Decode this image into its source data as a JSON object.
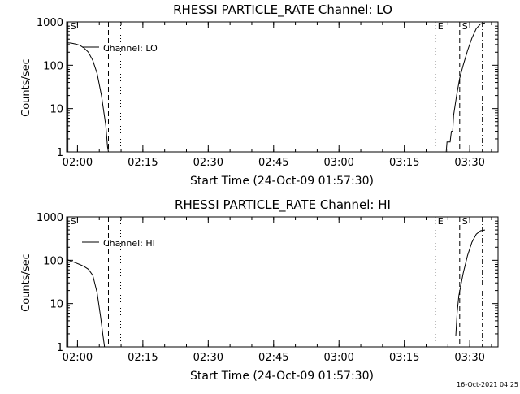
{
  "footer": {
    "timestamp": "16-Oct-2021 04:25"
  },
  "chart_data": [
    {
      "type": "line",
      "title": "RHESSI PARTICLE_RATE Channel: LO",
      "xlabel": "Start Time (24-Oct-09 01:57:30)",
      "ylabel": "Counts/sec",
      "x_unit": "minutes after 24-Oct-09 01:57:30",
      "xlim": [
        0,
        99
      ],
      "ylim": [
        1,
        1000
      ],
      "yscale": "log",
      "x_ticks": [
        {
          "value": 2.5,
          "label": "02:00"
        },
        {
          "value": 17.5,
          "label": "02:15"
        },
        {
          "value": 32.5,
          "label": "02:30"
        },
        {
          "value": 47.5,
          "label": "02:45"
        },
        {
          "value": 62.5,
          "label": "03:00"
        },
        {
          "value": 77.5,
          "label": "03:15"
        },
        {
          "value": 92.5,
          "label": "03:30"
        }
      ],
      "y_ticks": [
        {
          "value": 1,
          "label": "1"
        },
        {
          "value": 10,
          "label": "10"
        },
        {
          "value": 100,
          "label": "100"
        },
        {
          "value": 1000,
          "label": "1000"
        }
      ],
      "legend": {
        "position": "top-left",
        "label": "Channel: LO"
      },
      "markers": [
        {
          "x": 0.3,
          "style": "solid",
          "label": "S"
        },
        {
          "x": 9.6,
          "style": "dashed",
          "label": ""
        },
        {
          "x": 12.4,
          "style": "dotted",
          "label": ""
        },
        {
          "x": 84.6,
          "style": "dotted",
          "label": "E"
        },
        {
          "x": 90.2,
          "style": "dashed",
          "label": "S"
        },
        {
          "x": 95.4,
          "style": "dashdot",
          "label": ""
        }
      ],
      "series": [
        {
          "name": "Channel: LO",
          "segments": [
            [
              [
                0,
                330
              ],
              [
                1,
                325
              ],
              [
                2,
                310
              ],
              [
                3,
                290
              ],
              [
                4,
                250
              ],
              [
                5,
                200
              ],
              [
                6,
                130
              ],
              [
                7,
                65
              ],
              [
                8,
                20
              ],
              [
                9,
                4
              ],
              [
                9.4,
                1.3
              ],
              [
                9.6,
                1
              ]
            ],
            [
              [
                86.2,
                1
              ],
              [
                87.1,
                1
              ],
              [
                87.3,
                1.7
              ],
              [
                88,
                1.7
              ],
              [
                88.3,
                3
              ],
              [
                88.6,
                3
              ],
              [
                88.8,
                7
              ],
              [
                89.5,
                20
              ],
              [
                90.2,
                50
              ],
              [
                91,
                100
              ],
              [
                92,
                220
              ],
              [
                93,
                420
              ],
              [
                94,
                700
              ],
              [
                95,
                900
              ],
              [
                96,
                950
              ]
            ]
          ]
        }
      ]
    },
    {
      "type": "line",
      "title": "RHESSI PARTICLE_RATE Channel: HI",
      "xlabel": "Start Time (24-Oct-09 01:57:30)",
      "ylabel": "Counts/sec",
      "x_unit": "minutes after 24-Oct-09 01:57:30",
      "xlim": [
        0,
        99
      ],
      "ylim": [
        1,
        1000
      ],
      "yscale": "log",
      "x_ticks": [
        {
          "value": 2.5,
          "label": "02:00"
        },
        {
          "value": 17.5,
          "label": "02:15"
        },
        {
          "value": 32.5,
          "label": "02:30"
        },
        {
          "value": 47.5,
          "label": "02:45"
        },
        {
          "value": 62.5,
          "label": "03:00"
        },
        {
          "value": 77.5,
          "label": "03:15"
        },
        {
          "value": 92.5,
          "label": "03:30"
        }
      ],
      "y_ticks": [
        {
          "value": 1,
          "label": "1"
        },
        {
          "value": 10,
          "label": "10"
        },
        {
          "value": 100,
          "label": "100"
        },
        {
          "value": 1000,
          "label": "1000"
        }
      ],
      "legend": {
        "position": "top-left",
        "label": "Channel: HI"
      },
      "markers": [
        {
          "x": 0.3,
          "style": "solid",
          "label": "S"
        },
        {
          "x": 9.6,
          "style": "dashed",
          "label": ""
        },
        {
          "x": 12.4,
          "style": "dotted",
          "label": ""
        },
        {
          "x": 84.6,
          "style": "dotted",
          "label": "E"
        },
        {
          "x": 90.2,
          "style": "dashed",
          "label": "S"
        },
        {
          "x": 95.4,
          "style": "dashdot",
          "label": ""
        }
      ],
      "series": [
        {
          "name": "Channel: HI",
          "segments": [
            [
              [
                0,
                105
              ],
              [
                1,
                95
              ],
              [
                2,
                88
              ],
              [
                3,
                80
              ],
              [
                4,
                72
              ],
              [
                5,
                62
              ],
              [
                6,
                45
              ],
              [
                7,
                18
              ],
              [
                7.8,
                5
              ],
              [
                8.3,
                2
              ],
              [
                8.7,
                1
              ]
            ],
            [
              [
                89.3,
                1.8
              ],
              [
                89.6,
                6
              ],
              [
                90,
                15
              ],
              [
                91,
                50
              ],
              [
                92,
                130
              ],
              [
                93,
                260
              ],
              [
                94,
                400
              ],
              [
                95,
                480
              ],
              [
                96,
                500
              ]
            ]
          ]
        }
      ]
    }
  ]
}
